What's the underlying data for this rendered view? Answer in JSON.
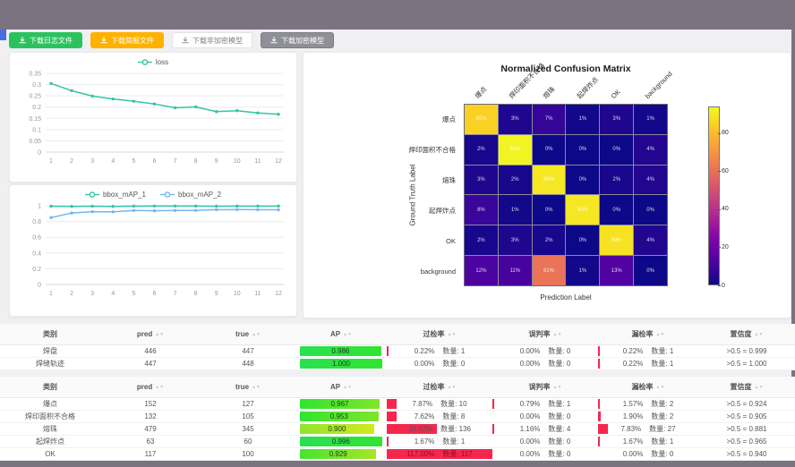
{
  "toolbar": {
    "buttons": [
      {
        "label": "下载日志文件",
        "variant": "green",
        "name": "download-log-file-button"
      },
      {
        "label": "下载简报文件",
        "variant": "orange",
        "name": "download-report-file-button"
      },
      {
        "label": "下载非加密模型",
        "variant": "plain",
        "name": "download-unencrypted-model-button"
      },
      {
        "label": "下载加密模型",
        "variant": "dark",
        "name": "download-encrypted-model-button"
      }
    ]
  },
  "chart_data": [
    {
      "type": "line",
      "title": "loss",
      "x": [
        1,
        2,
        3,
        4,
        5,
        6,
        7,
        8,
        9,
        10,
        11,
        12
      ],
      "series": [
        {
          "name": "loss",
          "color": "#35c5a5",
          "values": [
            0.305,
            0.273,
            0.249,
            0.236,
            0.226,
            0.214,
            0.197,
            0.201,
            0.18,
            0.184,
            0.174,
            0.168
          ]
        }
      ],
      "ymax": 0.35,
      "yticks": [
        0,
        0.05,
        0.1,
        0.15,
        0.2,
        0.25,
        0.3,
        0.35
      ],
      "legend_position": "top",
      "grid": true
    },
    {
      "type": "line",
      "title": "bbox_mAP",
      "x": [
        1,
        2,
        3,
        4,
        5,
        6,
        7,
        8,
        9,
        10,
        11,
        12
      ],
      "series": [
        {
          "name": "bbox_mAP_1",
          "color": "#35c5a5",
          "values": [
            0.995,
            0.992,
            0.995,
            0.992,
            0.996,
            0.997,
            0.997,
            0.997,
            0.995,
            0.996,
            0.996,
            0.996
          ]
        },
        {
          "name": "bbox_mAP_2",
          "color": "#74b7ee",
          "values": [
            0.85,
            0.908,
            0.925,
            0.923,
            0.94,
            0.936,
            0.94,
            0.94,
            0.95,
            0.951,
            0.95,
            0.949
          ]
        }
      ],
      "ymax": 1,
      "yticks": [
        0,
        0.2,
        0.4,
        0.6,
        0.8,
        1
      ],
      "legend_position": "top",
      "grid": true
    },
    {
      "type": "heatmap",
      "title": "Normalized Confusion Matrix",
      "xlabel": "Prediction Label",
      "ylabel": "Ground Truth Label",
      "unit": "%",
      "labels": [
        "爆点",
        "焊印面积不合格",
        "熔珠",
        "起焊炸点",
        "OK",
        "background"
      ],
      "matrix": [
        [
          85,
          3,
          7,
          1,
          3,
          1
        ],
        [
          2,
          93,
          0,
          0,
          0,
          4
        ],
        [
          3,
          2,
          90,
          0,
          2,
          4
        ],
        [
          8,
          1,
          0,
          90,
          0,
          0
        ],
        [
          2,
          3,
          2,
          0,
          89,
          4
        ],
        [
          12,
          11,
          61,
          1,
          13,
          0
        ]
      ],
      "vmax": 94,
      "colorbar_ticks": [
        0,
        20,
        40,
        60,
        80
      ]
    }
  ],
  "tables": {
    "count_prefix": "数量:",
    "columns": [
      {
        "label": "类别",
        "sortable": false
      },
      {
        "label": "pred",
        "sortable": true
      },
      {
        "label": "true",
        "sortable": true
      },
      {
        "label": "AP",
        "sortable": true
      },
      {
        "label": "过检率",
        "sortable": true
      },
      {
        "label": "误判率",
        "sortable": true
      },
      {
        "label": "漏检率",
        "sortable": true
      },
      {
        "label": "置信度",
        "sortable": true
      }
    ],
    "groups": [
      {
        "rows": [
          {
            "cls": "焊盘",
            "pred": "446",
            "true": "447",
            "ap": "0.986",
            "rates": [
              {
                "pct": "0.22%",
                "value": 0.22,
                "count": "1"
              },
              {
                "pct": "0.00%",
                "value": 0,
                "count": "0"
              },
              {
                "pct": "0.22%",
                "value": 0.22,
                "count": "1"
              }
            ],
            "conf": ">0.5 = 0.999"
          },
          {
            "cls": "焊缝轨迹",
            "pred": "447",
            "true": "448",
            "ap": "1.000",
            "rates": [
              {
                "pct": "0.00%",
                "value": 0,
                "count": "0"
              },
              {
                "pct": "0.00%",
                "value": 0,
                "count": "0"
              },
              {
                "pct": "0.22%",
                "value": 0.22,
                "count": "1"
              }
            ],
            "conf": ">0.5 = 1.000"
          }
        ]
      },
      {
        "rows": [
          {
            "cls": "爆点",
            "pred": "152",
            "true": "127",
            "ap": "0.967",
            "rates": [
              {
                "pct": "7.87%",
                "value": 7.87,
                "count": "10"
              },
              {
                "pct": "0.79%",
                "value": 0.79,
                "count": "1"
              },
              {
                "pct": "1.57%",
                "value": 1.57,
                "count": "2"
              }
            ],
            "conf": ">0.5 = 0.924"
          },
          {
            "cls": "焊印面积不合格",
            "pred": "132",
            "true": "105",
            "ap": "0.953",
            "rates": [
              {
                "pct": "7.62%",
                "value": 7.62,
                "count": "8"
              },
              {
                "pct": "0.00%",
                "value": 0,
                "count": "0"
              },
              {
                "pct": "1.90%",
                "value": 1.9,
                "count": "2"
              }
            ],
            "conf": ">0.5 = 0.905"
          },
          {
            "cls": "熔珠",
            "pred": "479",
            "true": "345",
            "ap": "0.900",
            "rates": [
              {
                "pct": "39.42%",
                "value": 39.42,
                "count": "136"
              },
              {
                "pct": "1.16%",
                "value": 1.16,
                "count": "4"
              },
              {
                "pct": "7.83%",
                "value": 7.83,
                "count": "27"
              }
            ],
            "conf": ">0.5 = 0.881"
          },
          {
            "cls": "起焊炸点",
            "pred": "63",
            "true": "60",
            "ap": "0.996",
            "rates": [
              {
                "pct": "1.67%",
                "value": 1.67,
                "count": "1"
              },
              {
                "pct": "0.00%",
                "value": 0,
                "count": "0"
              },
              {
                "pct": "1.67%",
                "value": 1.67,
                "count": "1"
              }
            ],
            "conf": ">0.5 = 0.965"
          },
          {
            "cls": "OK",
            "pred": "117",
            "true": "100",
            "ap": "0.929",
            "rates": [
              {
                "pct": "117.00%",
                "value": 117,
                "count": "117"
              },
              {
                "pct": "0.00%",
                "value": 0,
                "count": "0"
              },
              {
                "pct": "0.00%",
                "value": 0,
                "count": "0"
              }
            ],
            "conf": ">0.5 = 0.940"
          }
        ]
      }
    ]
  }
}
